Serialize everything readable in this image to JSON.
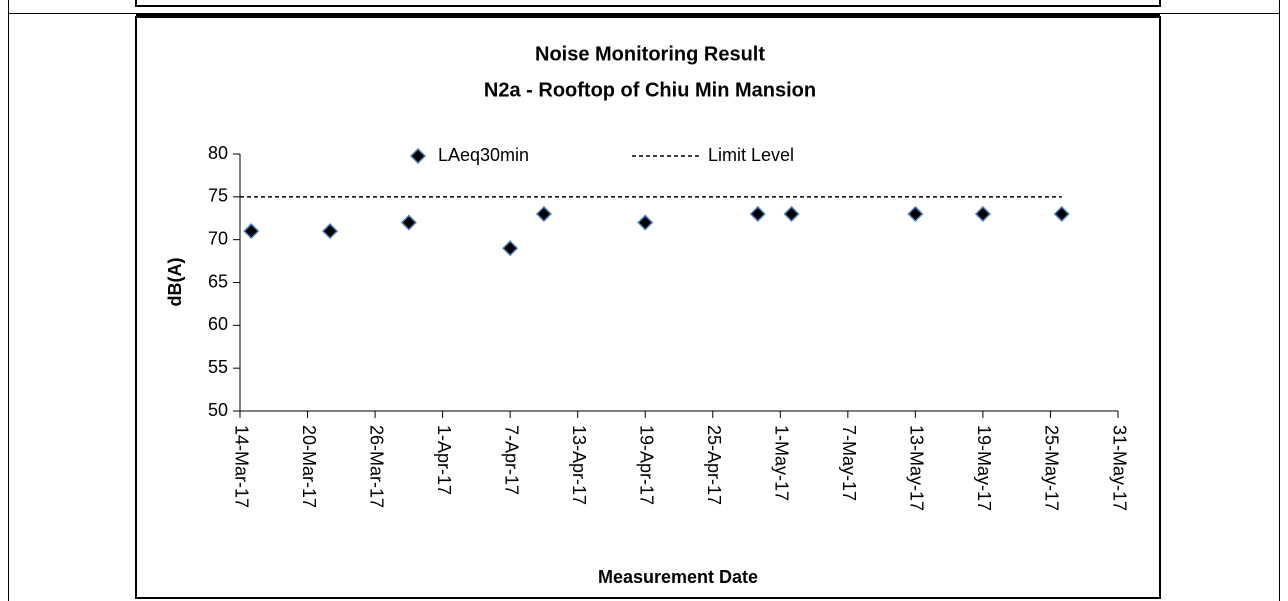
{
  "chart_data": {
    "type": "scatter",
    "title": "Noise Monitoring Result",
    "subtitle": "N2a - Rooftop of Chiu Min Mansion",
    "x_label": "Measurement Date",
    "y_label": "dB(A)",
    "series": [
      {
        "name": "LAeq30min",
        "type": "scatter",
        "color": "#000000",
        "x": [
          "2017-03-15",
          "2017-03-22",
          "2017-03-29",
          "2017-04-07",
          "2017-04-10",
          "2017-04-19",
          "2017-04-29",
          "2017-05-02",
          "2017-05-13",
          "2017-05-19",
          "2017-05-26"
        ],
        "values": [
          71,
          71,
          72,
          69,
          73,
          72,
          73,
          73,
          73,
          73,
          73
        ]
      },
      {
        "name": "Limit Level",
        "type": "line",
        "color": "#000000",
        "x": [
          "2017-03-14",
          "2017-05-26"
        ],
        "values": [
          75,
          75
        ]
      }
    ],
    "xlim": [
      "2017-03-14",
      "2017-05-31"
    ],
    "xticks": [
      {
        "value": "2017-03-14",
        "label": "14-Mar-17"
      },
      {
        "value": "2017-03-20",
        "label": "20-Mar-17"
      },
      {
        "value": "2017-03-26",
        "label": "26-Mar-17"
      },
      {
        "value": "2017-04-01",
        "label": "1-Apr-17"
      },
      {
        "value": "2017-04-07",
        "label": "7-Apr-17"
      },
      {
        "value": "2017-04-13",
        "label": "13-Apr-17"
      },
      {
        "value": "2017-04-19",
        "label": "19-Apr-17"
      },
      {
        "value": "2017-04-25",
        "label": "25-Apr-17"
      },
      {
        "value": "2017-05-01",
        "label": "1-May-17"
      },
      {
        "value": "2017-05-07",
        "label": "7-May-17"
      },
      {
        "value": "2017-05-13",
        "label": "13-May-17"
      },
      {
        "value": "2017-05-19",
        "label": "19-May-17"
      },
      {
        "value": "2017-05-25",
        "label": "25-May-17"
      },
      {
        "value": "2017-05-31",
        "label": "31-May-17"
      }
    ],
    "ylim": [
      50,
      80
    ],
    "yticks": [
      50,
      55,
      60,
      65,
      70,
      75,
      80
    ],
    "grid": false,
    "legend": "top"
  }
}
